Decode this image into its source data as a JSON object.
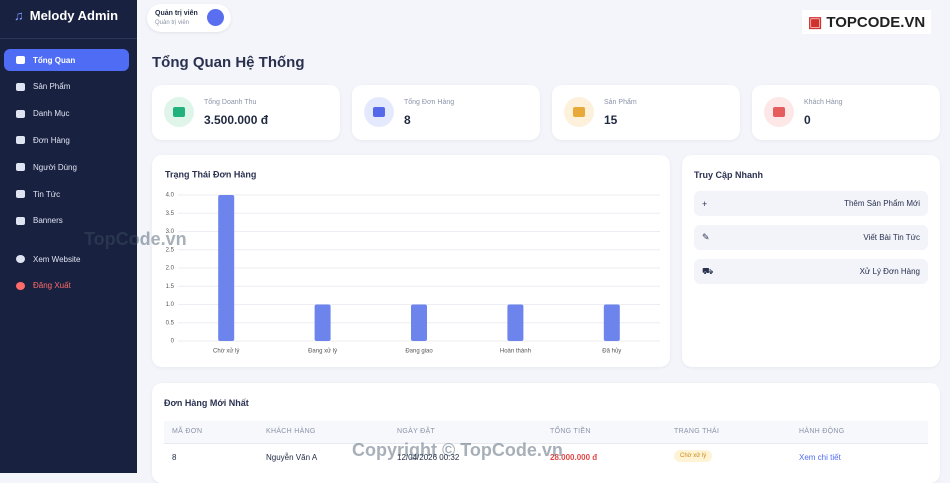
{
  "sidebar": {
    "brand": "Melody Admin",
    "items": [
      "Tổng Quan",
      "Sản Phẩm",
      "Danh Mục",
      "Đơn Hàng",
      "Người Dùng",
      "Tin Tức",
      "Banners"
    ],
    "extra": [
      "Xem Website",
      "Đăng Xuất"
    ]
  },
  "header": {
    "user_name": "Quản trị viên",
    "user_role": "Quản trị viên",
    "title": "Tổng Quan Hệ Thống"
  },
  "stats": [
    {
      "label": "Tổng Doanh Thu",
      "value": "3.500.000 đ"
    },
    {
      "label": "Tổng Đơn Hàng",
      "value": "8"
    },
    {
      "label": "Sản Phẩm",
      "value": "15"
    },
    {
      "label": "Khách Hàng",
      "value": "0"
    }
  ],
  "chart_data": {
    "type": "bar",
    "title": "Trạng Thái Đơn Hàng",
    "categories": [
      "Chờ xử lý",
      "Đang xử lý",
      "Đang giao",
      "Hoàn thành",
      "Đã hủy"
    ],
    "values": [
      4,
      1,
      1,
      1,
      1
    ],
    "color": "#6c84ec",
    "ylim": [
      0,
      4
    ],
    "yticks": [
      0,
      0.5,
      {
        "value": 1,
        "label": "1.0"
      },
      1.5,
      {
        "value": 2,
        "label": "2.0"
      },
      2.5,
      {
        "value": 3,
        "label": "3.0"
      },
      3.5,
      {
        "value": 4,
        "label": "4.0"
      }
    ],
    "grid": true
  },
  "quick_access": {
    "title": "Truy Cập Nhanh",
    "items": [
      "Thêm Sản Phẩm Mới",
      "Viết Bài Tin Tức",
      "Xử Lý Đơn Hàng"
    ]
  },
  "table": {
    "title": "Đơn Hàng Mới Nhất",
    "headers": [
      "MÃ ĐƠN",
      "KHÁCH HÀNG",
      "NGÀY ĐẶT",
      "TỔNG TIỀN",
      "TRẠNG THÁI",
      "HÀNH ĐỘNG"
    ],
    "rows": [
      [
        "8",
        "Nguyễn Văn A",
        "12/04/2026 00:32",
        "28.000.000 đ",
        "Chờ xử lý",
        "Xem chi tiết"
      ]
    ]
  },
  "watermarks": [
    "TOPCODE.VN",
    "TopCode.vn",
    "Copyright © TopCode.vn"
  ]
}
